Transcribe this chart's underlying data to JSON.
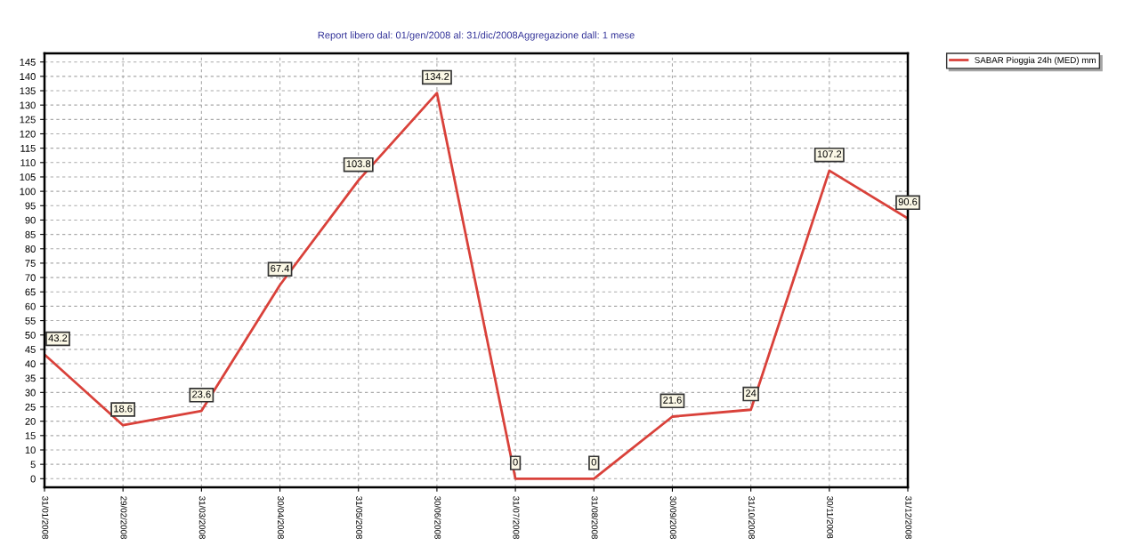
{
  "chart_data": {
    "type": "line",
    "title": "Report libero dal: 01/gen/2008 al: 31/dic/2008Aggregazione dall: 1 mese",
    "categories": [
      "31/01/2008",
      "29/02/2008",
      "31/03/2008",
      "30/04/2008",
      "31/05/2008",
      "30/06/2008",
      "31/07/2008",
      "31/08/2008",
      "30/09/2008",
      "31/10/2008",
      "30/11/2008",
      "31/12/2008"
    ],
    "series": [
      {
        "name": "SABAR Pioggia 24h (MED) mm",
        "color": "#d9413a",
        "values": [
          43.2,
          18.6,
          23.6,
          67.4,
          103.8,
          134.2,
          0,
          0,
          21.6,
          24,
          107.2,
          90.6
        ]
      }
    ],
    "ylim": [
      -3,
      148
    ],
    "yticks": [
      0,
      5,
      10,
      15,
      20,
      25,
      30,
      35,
      40,
      45,
      50,
      55,
      60,
      65,
      70,
      75,
      80,
      85,
      90,
      95,
      100,
      105,
      110,
      115,
      120,
      125,
      130,
      135,
      140,
      145
    ],
    "grid": true,
    "line_style": "solid",
    "marker": "none",
    "legend": "top right",
    "data_labels": true
  }
}
